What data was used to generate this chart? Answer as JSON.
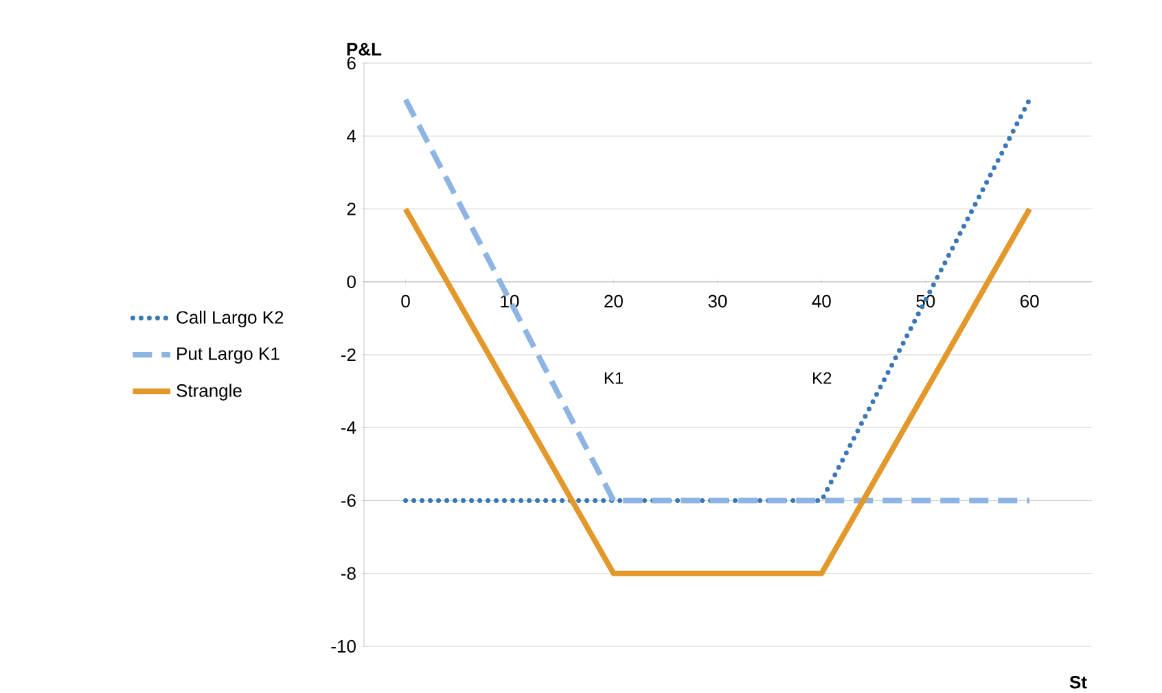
{
  "chart_data": {
    "type": "line",
    "xlabel": "St",
    "ylabel": "P&L",
    "xlim": [
      -4,
      66
    ],
    "ylim": [
      -10,
      6
    ],
    "xticks": [
      0,
      10,
      20,
      30,
      40,
      50,
      60
    ],
    "yticks": [
      -10,
      -8,
      -6,
      -4,
      -2,
      0,
      2,
      4,
      6
    ],
    "grid": "y",
    "legend": "left",
    "annotations": [
      "K1",
      "K2"
    ],
    "series": [
      {
        "name": "Call Largo K2",
        "color": "#3a78b5",
        "line_style": "dotted",
        "x": [
          0,
          20,
          40,
          60
        ],
        "values": [
          -6,
          -6,
          -6,
          5
        ]
      },
      {
        "name": "Put Largo K1",
        "color": "#8db4e2",
        "line_style": "dashed",
        "x": [
          0,
          20,
          40,
          60
        ],
        "values": [
          5,
          -6,
          -6,
          -6
        ]
      },
      {
        "name": "Strangle",
        "color": "#e2982b",
        "line_style": "solid",
        "x": [
          0,
          20,
          40,
          60
        ],
        "values": [
          2,
          -8,
          -8,
          2
        ]
      }
    ]
  }
}
